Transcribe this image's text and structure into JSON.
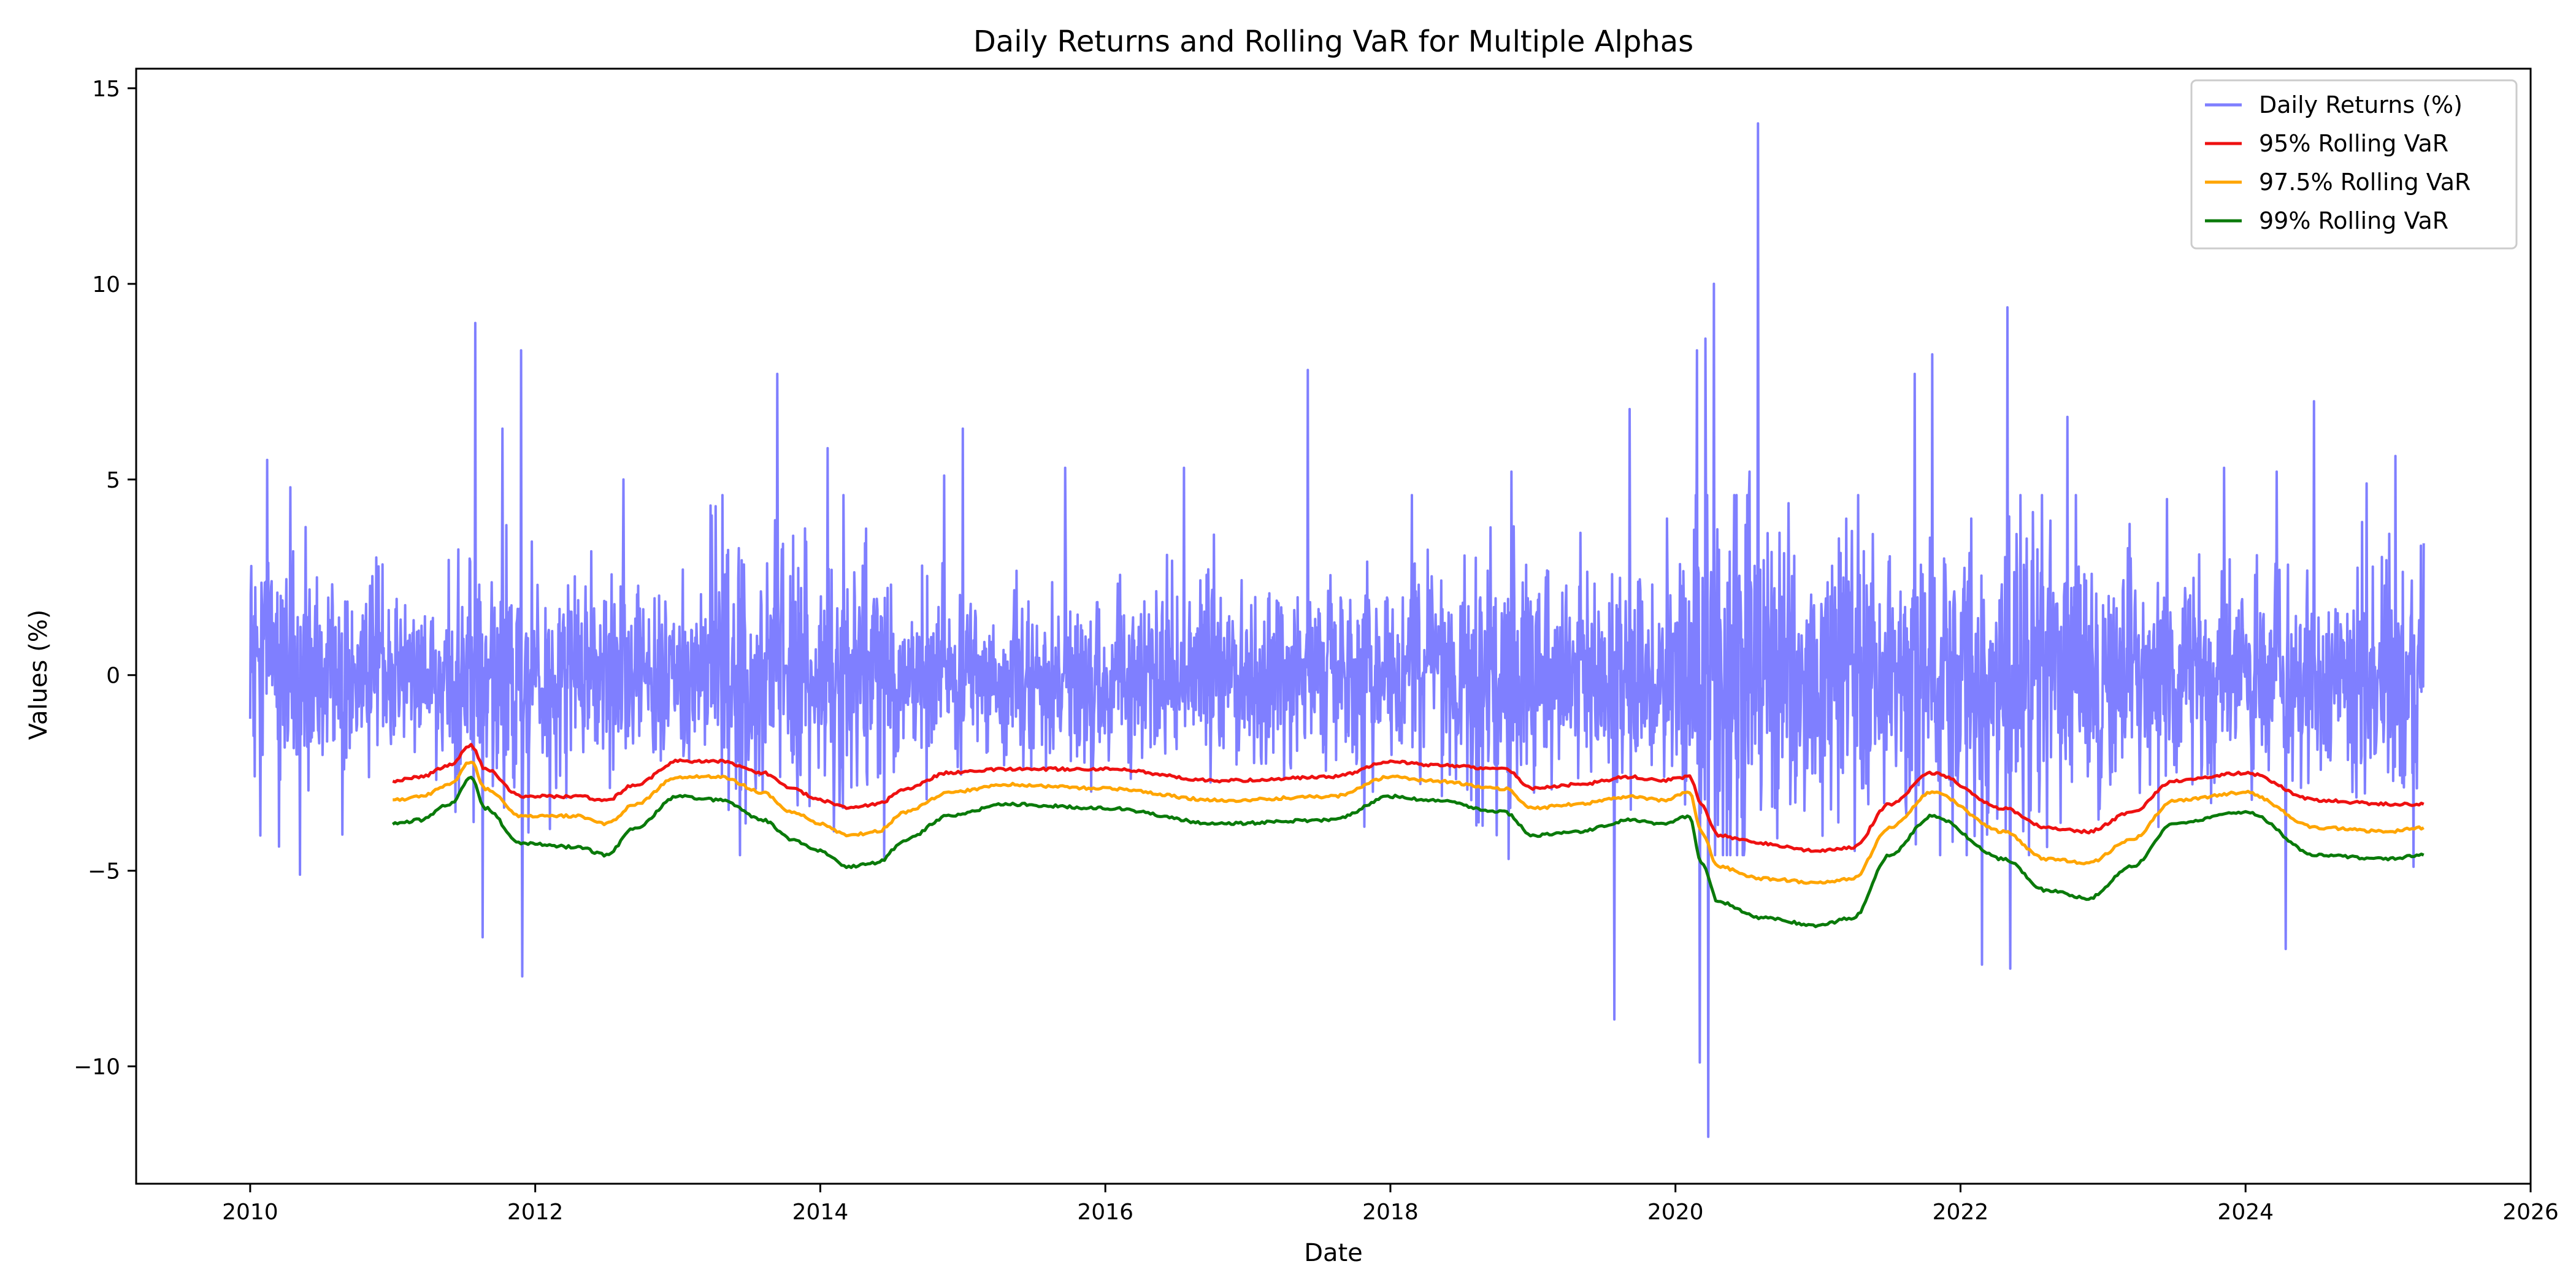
{
  "chart_data": {
    "type": "line",
    "title": "Daily Returns and Rolling VaR for Multiple Alphas",
    "xlabel": "Date",
    "ylabel": "Values (%)",
    "xlim": [
      2009.2,
      2026.0
    ],
    "ylim": [
      -13.0,
      15.5
    ],
    "x_ticks": [
      2010,
      2012,
      2014,
      2016,
      2018,
      2020,
      2022,
      2024,
      2026
    ],
    "y_ticks": [
      -10,
      -5,
      0,
      5,
      10,
      15
    ],
    "grid": false,
    "legend_position": "top-right",
    "returns_range": {
      "start": 2010.0,
      "end": 2025.25
    },
    "series": [
      {
        "name": "Daily Returns (%)",
        "color": "#7f7fff",
        "kind": "returns",
        "volatility_regimes": [
          {
            "x": 2010.0,
            "sd": 1.3
          },
          {
            "x": 2010.4,
            "sd": 1.7
          },
          {
            "x": 2010.7,
            "sd": 1.0
          },
          {
            "x": 2011.3,
            "sd": 0.9
          },
          {
            "x": 2011.6,
            "sd": 1.7
          },
          {
            "x": 2011.9,
            "sd": 1.4
          },
          {
            "x": 2012.5,
            "sd": 1.1
          },
          {
            "x": 2013.0,
            "sd": 1.0
          },
          {
            "x": 2013.3,
            "sd": 1.6
          },
          {
            "x": 2013.8,
            "sd": 1.6
          },
          {
            "x": 2014.5,
            "sd": 1.3
          },
          {
            "x": 2015.0,
            "sd": 1.1
          },
          {
            "x": 2016.0,
            "sd": 1.2
          },
          {
            "x": 2017.0,
            "sd": 1.2
          },
          {
            "x": 2018.0,
            "sd": 1.1
          },
          {
            "x": 2018.8,
            "sd": 1.5
          },
          {
            "x": 2019.5,
            "sd": 1.3
          },
          {
            "x": 2020.1,
            "sd": 1.6
          },
          {
            "x": 2020.3,
            "sd": 2.9
          },
          {
            "x": 2020.8,
            "sd": 2.0
          },
          {
            "x": 2021.5,
            "sd": 1.7
          },
          {
            "x": 2022.2,
            "sd": 2.0
          },
          {
            "x": 2022.8,
            "sd": 1.9
          },
          {
            "x": 2023.3,
            "sd": 1.4
          },
          {
            "x": 2024.0,
            "sd": 1.3
          },
          {
            "x": 2025.3,
            "sd": 1.4
          }
        ],
        "spikes": [
          {
            "x": 2010.12,
            "y": 5.5
          },
          {
            "x": 2010.07,
            "y": -4.1
          },
          {
            "x": 2010.35,
            "y": -5.1
          },
          {
            "x": 2010.28,
            "y": 4.8
          },
          {
            "x": 2011.58,
            "y": 9.0
          },
          {
            "x": 2011.63,
            "y": -6.7
          },
          {
            "x": 2011.77,
            "y": 6.3
          },
          {
            "x": 2011.9,
            "y": 8.3
          },
          {
            "x": 2011.91,
            "y": -7.7
          },
          {
            "x": 2012.62,
            "y": 5.0
          },
          {
            "x": 2013.7,
            "y": 7.7
          },
          {
            "x": 2014.05,
            "y": 5.8
          },
          {
            "x": 2014.45,
            "y": -4.7
          },
          {
            "x": 2014.87,
            "y": 5.1
          },
          {
            "x": 2015.0,
            "y": 6.3
          },
          {
            "x": 2015.72,
            "y": 5.3
          },
          {
            "x": 2016.55,
            "y": 5.3
          },
          {
            "x": 2017.42,
            "y": 7.8
          },
          {
            "x": 2018.15,
            "y": 4.6
          },
          {
            "x": 2018.85,
            "y": 5.2
          },
          {
            "x": 2018.83,
            "y": -4.7
          },
          {
            "x": 2019.57,
            "y": -8.8
          },
          {
            "x": 2019.68,
            "y": 6.8
          },
          {
            "x": 2020.15,
            "y": 8.3
          },
          {
            "x": 2020.17,
            "y": -9.9
          },
          {
            "x": 2020.21,
            "y": 8.6
          },
          {
            "x": 2020.23,
            "y": -11.8
          },
          {
            "x": 2020.27,
            "y": 10.0
          },
          {
            "x": 2020.52,
            "y": 5.2
          },
          {
            "x": 2020.58,
            "y": 14.1
          },
          {
            "x": 2021.68,
            "y": 7.7
          },
          {
            "x": 2021.8,
            "y": 8.2
          },
          {
            "x": 2022.15,
            "y": -7.4
          },
          {
            "x": 2022.33,
            "y": 9.4
          },
          {
            "x": 2022.35,
            "y": -7.5
          },
          {
            "x": 2022.75,
            "y": 6.6
          },
          {
            "x": 2023.45,
            "y": 4.5
          },
          {
            "x": 2023.85,
            "y": 5.3
          },
          {
            "x": 2024.22,
            "y": 5.2
          },
          {
            "x": 2024.28,
            "y": -7.0
          },
          {
            "x": 2024.48,
            "y": 7.0
          },
          {
            "x": 2024.85,
            "y": 4.9
          },
          {
            "x": 2025.05,
            "y": 5.6
          },
          {
            "x": 2025.18,
            "y": -4.9
          }
        ]
      },
      {
        "name": "95% Rolling VaR",
        "color": "#ee1111",
        "kind": "var",
        "points": [
          [
            2011.0,
            -2.7
          ],
          [
            2011.2,
            -2.6
          ],
          [
            2011.4,
            -2.3
          ],
          [
            2011.55,
            -1.8
          ],
          [
            2011.65,
            -2.4
          ],
          [
            2011.9,
            -3.1
          ],
          [
            2012.3,
            -3.1
          ],
          [
            2012.5,
            -3.2
          ],
          [
            2012.7,
            -2.8
          ],
          [
            2013.0,
            -2.2
          ],
          [
            2013.3,
            -2.2
          ],
          [
            2013.6,
            -2.5
          ],
          [
            2013.8,
            -2.9
          ],
          [
            2014.0,
            -3.2
          ],
          [
            2014.2,
            -3.4
          ],
          [
            2014.4,
            -3.3
          ],
          [
            2014.6,
            -2.9
          ],
          [
            2014.9,
            -2.5
          ],
          [
            2015.3,
            -2.4
          ],
          [
            2016.0,
            -2.4
          ],
          [
            2016.8,
            -2.7
          ],
          [
            2017.6,
            -2.6
          ],
          [
            2018.0,
            -2.2
          ],
          [
            2018.3,
            -2.3
          ],
          [
            2018.8,
            -2.4
          ],
          [
            2019.0,
            -2.9
          ],
          [
            2019.3,
            -2.8
          ],
          [
            2019.7,
            -2.6
          ],
          [
            2019.9,
            -2.7
          ],
          [
            2020.1,
            -2.6
          ],
          [
            2020.18,
            -3.3
          ],
          [
            2020.3,
            -4.1
          ],
          [
            2020.6,
            -4.3
          ],
          [
            2021.0,
            -4.5
          ],
          [
            2021.25,
            -4.4
          ],
          [
            2021.5,
            -3.3
          ],
          [
            2021.8,
            -2.5
          ],
          [
            2022.3,
            -3.4
          ],
          [
            2022.6,
            -3.9
          ],
          [
            2022.9,
            -4.0
          ],
          [
            2023.2,
            -3.5
          ],
          [
            2023.5,
            -2.7
          ],
          [
            2024.0,
            -2.5
          ],
          [
            2024.5,
            -3.2
          ],
          [
            2025.0,
            -3.3
          ],
          [
            2025.25,
            -3.3
          ]
        ]
      },
      {
        "name": "97.5% Rolling VaR",
        "color": "#ffa500",
        "kind": "var",
        "points": [
          [
            2011.0,
            -3.2
          ],
          [
            2011.2,
            -3.1
          ],
          [
            2011.4,
            -2.8
          ],
          [
            2011.55,
            -2.2
          ],
          [
            2011.65,
            -2.9
          ],
          [
            2011.9,
            -3.6
          ],
          [
            2012.3,
            -3.6
          ],
          [
            2012.5,
            -3.8
          ],
          [
            2012.7,
            -3.3
          ],
          [
            2013.0,
            -2.6
          ],
          [
            2013.3,
            -2.6
          ],
          [
            2013.6,
            -3.0
          ],
          [
            2013.8,
            -3.5
          ],
          [
            2014.0,
            -3.8
          ],
          [
            2014.2,
            -4.1
          ],
          [
            2014.4,
            -4.0
          ],
          [
            2014.6,
            -3.5
          ],
          [
            2014.9,
            -3.0
          ],
          [
            2015.3,
            -2.8
          ],
          [
            2016.0,
            -2.9
          ],
          [
            2016.8,
            -3.2
          ],
          [
            2017.6,
            -3.1
          ],
          [
            2018.0,
            -2.6
          ],
          [
            2018.3,
            -2.7
          ],
          [
            2018.8,
            -2.9
          ],
          [
            2019.0,
            -3.4
          ],
          [
            2019.3,
            -3.3
          ],
          [
            2019.7,
            -3.1
          ],
          [
            2019.9,
            -3.2
          ],
          [
            2020.1,
            -3.0
          ],
          [
            2020.18,
            -4.0
          ],
          [
            2020.3,
            -4.9
          ],
          [
            2020.6,
            -5.2
          ],
          [
            2021.0,
            -5.3
          ],
          [
            2021.25,
            -5.2
          ],
          [
            2021.5,
            -3.9
          ],
          [
            2021.8,
            -3.0
          ],
          [
            2022.3,
            -4.0
          ],
          [
            2022.6,
            -4.7
          ],
          [
            2022.9,
            -4.8
          ],
          [
            2023.2,
            -4.2
          ],
          [
            2023.5,
            -3.2
          ],
          [
            2024.0,
            -3.0
          ],
          [
            2024.5,
            -3.9
          ],
          [
            2025.0,
            -4.0
          ],
          [
            2025.25,
            -3.9
          ]
        ]
      },
      {
        "name": "99% Rolling VaR",
        "color": "#0a7a0a",
        "kind": "var",
        "points": [
          [
            2011.0,
            -3.8
          ],
          [
            2011.2,
            -3.7
          ],
          [
            2011.4,
            -3.3
          ],
          [
            2011.55,
            -2.6
          ],
          [
            2011.65,
            -3.4
          ],
          [
            2011.9,
            -4.3
          ],
          [
            2012.3,
            -4.4
          ],
          [
            2012.5,
            -4.6
          ],
          [
            2012.7,
            -3.9
          ],
          [
            2013.0,
            -3.1
          ],
          [
            2013.3,
            -3.2
          ],
          [
            2013.6,
            -3.7
          ],
          [
            2013.8,
            -4.2
          ],
          [
            2014.0,
            -4.5
          ],
          [
            2014.2,
            -4.9
          ],
          [
            2014.4,
            -4.8
          ],
          [
            2014.6,
            -4.2
          ],
          [
            2014.9,
            -3.6
          ],
          [
            2015.3,
            -3.3
          ],
          [
            2016.0,
            -3.4
          ],
          [
            2016.8,
            -3.8
          ],
          [
            2017.6,
            -3.7
          ],
          [
            2018.0,
            -3.1
          ],
          [
            2018.3,
            -3.2
          ],
          [
            2018.8,
            -3.5
          ],
          [
            2019.0,
            -4.1
          ],
          [
            2019.3,
            -4.0
          ],
          [
            2019.7,
            -3.7
          ],
          [
            2019.9,
            -3.8
          ],
          [
            2020.1,
            -3.6
          ],
          [
            2020.18,
            -4.8
          ],
          [
            2020.3,
            -5.8
          ],
          [
            2020.6,
            -6.2
          ],
          [
            2021.0,
            -6.4
          ],
          [
            2021.25,
            -6.2
          ],
          [
            2021.5,
            -4.6
          ],
          [
            2021.8,
            -3.6
          ],
          [
            2022.3,
            -4.7
          ],
          [
            2022.6,
            -5.5
          ],
          [
            2022.9,
            -5.7
          ],
          [
            2023.2,
            -4.9
          ],
          [
            2023.5,
            -3.8
          ],
          [
            2024.0,
            -3.5
          ],
          [
            2024.5,
            -4.6
          ],
          [
            2025.0,
            -4.7
          ],
          [
            2025.25,
            -4.6
          ]
        ]
      }
    ]
  }
}
